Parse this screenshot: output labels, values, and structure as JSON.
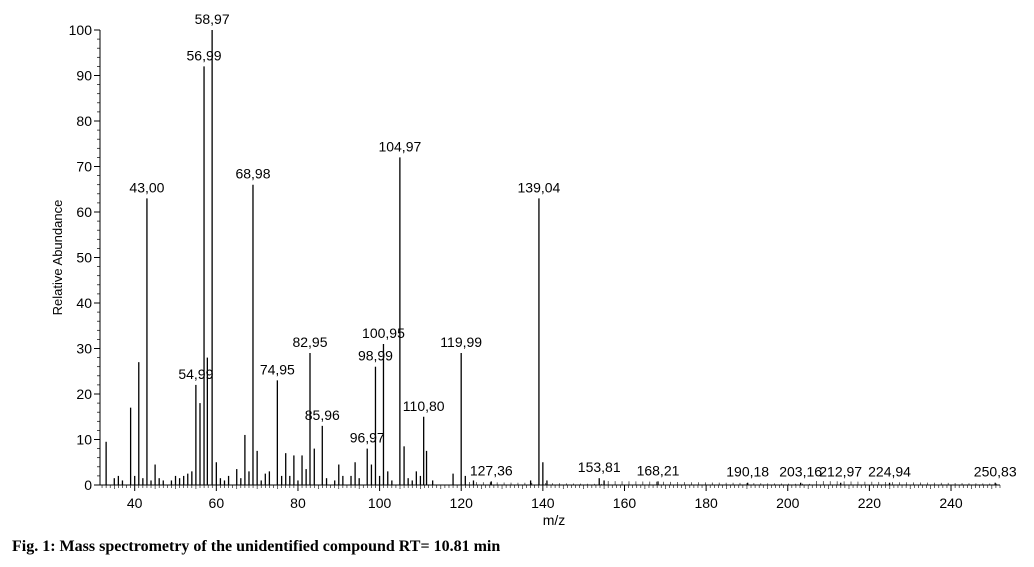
{
  "caption": "Fig. 1: Mass spectrometry of the unidentified compound RT= 10.81 min",
  "chart_data": {
    "type": "bar",
    "xlabel": "m/z",
    "ylabel": "Relative Abundance",
    "xlim": [
      31.5,
      252
    ],
    "ylim": [
      0,
      100
    ],
    "x_ticks": [
      40,
      60,
      80,
      100,
      120,
      140,
      160,
      180,
      200,
      220,
      240
    ],
    "y_ticks": [
      0,
      10,
      20,
      30,
      40,
      50,
      60,
      70,
      80,
      90,
      100
    ],
    "grid": false,
    "peaks": [
      {
        "x": 33.0,
        "y": 9.5
      },
      {
        "x": 35.0,
        "y": 1.5
      },
      {
        "x": 36.0,
        "y": 2.0
      },
      {
        "x": 37.0,
        "y": 1.0
      },
      {
        "x": 39.0,
        "y": 17.0
      },
      {
        "x": 40.0,
        "y": 2.0
      },
      {
        "x": 41.0,
        "y": 27.0
      },
      {
        "x": 42.0,
        "y": 1.5
      },
      {
        "x": 43.0,
        "y": 63.0,
        "label": "43,00"
      },
      {
        "x": 44.0,
        "y": 1.0
      },
      {
        "x": 45.0,
        "y": 4.5
      },
      {
        "x": 46.0,
        "y": 1.5
      },
      {
        "x": 47.0,
        "y": 1.0
      },
      {
        "x": 49.0,
        "y": 1.0
      },
      {
        "x": 50.0,
        "y": 2.0
      },
      {
        "x": 51.0,
        "y": 1.5
      },
      {
        "x": 52.0,
        "y": 2.0
      },
      {
        "x": 53.0,
        "y": 2.5
      },
      {
        "x": 54.0,
        "y": 3.0
      },
      {
        "x": 54.99,
        "y": 22.0,
        "label": "54,99"
      },
      {
        "x": 56.0,
        "y": 18.0
      },
      {
        "x": 56.99,
        "y": 92.0,
        "label": "56,99"
      },
      {
        "x": 57.8,
        "y": 28.0
      },
      {
        "x": 58.97,
        "y": 100.0,
        "label": "58,97"
      },
      {
        "x": 60.0,
        "y": 5.0
      },
      {
        "x": 61.0,
        "y": 1.5
      },
      {
        "x": 62.0,
        "y": 1.0
      },
      {
        "x": 63.0,
        "y": 2.0
      },
      {
        "x": 65.0,
        "y": 3.5
      },
      {
        "x": 66.0,
        "y": 1.5
      },
      {
        "x": 67.0,
        "y": 11.0
      },
      {
        "x": 68.0,
        "y": 3.0
      },
      {
        "x": 68.98,
        "y": 66.0,
        "label": "68,98"
      },
      {
        "x": 70.0,
        "y": 7.5
      },
      {
        "x": 71.0,
        "y": 1.0
      },
      {
        "x": 72.0,
        "y": 2.5
      },
      {
        "x": 73.0,
        "y": 3.0
      },
      {
        "x": 74.95,
        "y": 23.0,
        "label": "74,95"
      },
      {
        "x": 76.0,
        "y": 2.0
      },
      {
        "x": 77.0,
        "y": 7.0
      },
      {
        "x": 78.0,
        "y": 2.0
      },
      {
        "x": 79.0,
        "y": 6.5
      },
      {
        "x": 80.0,
        "y": 1.0
      },
      {
        "x": 81.0,
        "y": 6.5
      },
      {
        "x": 82.0,
        "y": 3.5
      },
      {
        "x": 82.95,
        "y": 29.0,
        "label": "82,95"
      },
      {
        "x": 84.0,
        "y": 8.0
      },
      {
        "x": 85.96,
        "y": 13.0,
        "label": "85,96"
      },
      {
        "x": 87.0,
        "y": 1.5
      },
      {
        "x": 89.0,
        "y": 1.0
      },
      {
        "x": 90.0,
        "y": 4.5
      },
      {
        "x": 91.0,
        "y": 2.0
      },
      {
        "x": 93.0,
        "y": 2.0
      },
      {
        "x": 94.0,
        "y": 5.0
      },
      {
        "x": 95.0,
        "y": 1.5
      },
      {
        "x": 96.97,
        "y": 8.0,
        "label": "96,97"
      },
      {
        "x": 98.0,
        "y": 4.5
      },
      {
        "x": 98.99,
        "y": 26.0,
        "label": "98,99"
      },
      {
        "x": 100.0,
        "y": 2.0
      },
      {
        "x": 100.95,
        "y": 31.0,
        "label": "100,95"
      },
      {
        "x": 102.0,
        "y": 3.0
      },
      {
        "x": 103.0,
        "y": 1.0
      },
      {
        "x": 104.97,
        "y": 72.0,
        "label": "104,97"
      },
      {
        "x": 106.0,
        "y": 8.5
      },
      {
        "x": 107.0,
        "y": 1.5
      },
      {
        "x": 108.0,
        "y": 1.0
      },
      {
        "x": 109.0,
        "y": 3.0
      },
      {
        "x": 110.0,
        "y": 2.0
      },
      {
        "x": 110.8,
        "y": 15.0,
        "label": "110,80"
      },
      {
        "x": 111.5,
        "y": 7.5
      },
      {
        "x": 113.0,
        "y": 1.0
      },
      {
        "x": 118.0,
        "y": 2.5
      },
      {
        "x": 119.99,
        "y": 29.0,
        "label": "119,99"
      },
      {
        "x": 121.0,
        "y": 2.0
      },
      {
        "x": 123.0,
        "y": 1.0
      },
      {
        "x": 127.36,
        "y": 0.8,
        "label": "127,36"
      },
      {
        "x": 137.0,
        "y": 1.0
      },
      {
        "x": 139.04,
        "y": 63.0,
        "label": "139,04"
      },
      {
        "x": 140.0,
        "y": 5.0
      },
      {
        "x": 141.0,
        "y": 1.0
      },
      {
        "x": 153.81,
        "y": 1.5,
        "label": "153,81"
      },
      {
        "x": 155.0,
        "y": 1.0
      },
      {
        "x": 168.21,
        "y": 0.8,
        "label": "168,21"
      },
      {
        "x": 190.18,
        "y": 0.5,
        "label": "190,18"
      },
      {
        "x": 203.16,
        "y": 0.5,
        "label": "203,16"
      },
      {
        "x": 212.97,
        "y": 0.5,
        "label": "212,97"
      },
      {
        "x": 224.94,
        "y": 0.5,
        "label": "224,94"
      },
      {
        "x": 250.83,
        "y": 0.5,
        "label": "250,83"
      }
    ]
  }
}
